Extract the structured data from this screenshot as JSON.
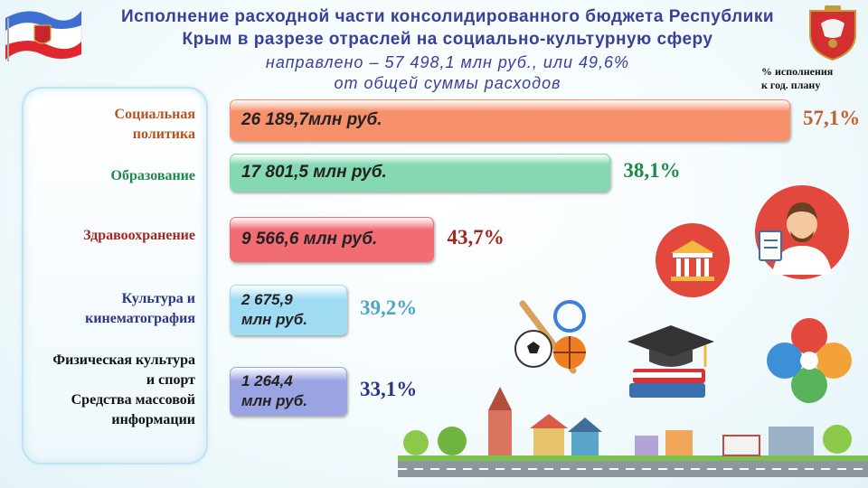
{
  "header": {
    "title_line1": "Исполнение расходной части консолидированного  бюджета Республики",
    "title_line2": "Крым в разрезе отраслей на социально-культурную  сферу",
    "subtitle_line1": "направлено – 57 498,1 млн руб., или 49,6%",
    "subtitle_line2": "от общей суммы расходов",
    "note_line1": "% исполнения",
    "note_line2": "к год. плану"
  },
  "chart_data": {
    "type": "bar",
    "orientation": "horizontal",
    "categories": [
      "Социальная политика",
      "Образование",
      "Здравоохранение",
      "Культура и кинематография",
      "Физическая культура и спорт Средства массовой информации"
    ],
    "category_lines": [
      [
        "Социальная",
        "политика"
      ],
      [
        "Образование"
      ],
      [
        "Здравоохранение"
      ],
      [
        "Культура и",
        "кинематография"
      ],
      [
        "Физическая культура",
        "и спорт",
        "Средства массовой",
        "информации"
      ]
    ],
    "values": [
      26189.7,
      17801.5,
      9566.6,
      2675.9,
      1264.4
    ],
    "value_labels": [
      [
        "26 189,7млн руб."
      ],
      [
        "17 801,5 млн руб."
      ],
      [
        "9 566,6 млн руб."
      ],
      [
        "2 675,9",
        "млн руб."
      ],
      [
        "1 264,4",
        "млн руб."
      ]
    ],
    "percent_labels": [
      "57,1%",
      "38,1%",
      "43,7%",
      "39,2%",
      "33,1%"
    ],
    "colors": {
      "bars": [
        "#f6916b",
        "#84d8b2",
        "#f26c73",
        "#9fdcf3",
        "#9ba4e2"
      ],
      "percents": [
        "#c4602e",
        "#1e8a4a",
        "#a3261f",
        "#4aa6c8",
        "#2c3486"
      ],
      "categories": [
        "#b5531f",
        "#1e8a4a",
        "#a3261f",
        "#2c3486",
        "#111111"
      ]
    }
  }
}
